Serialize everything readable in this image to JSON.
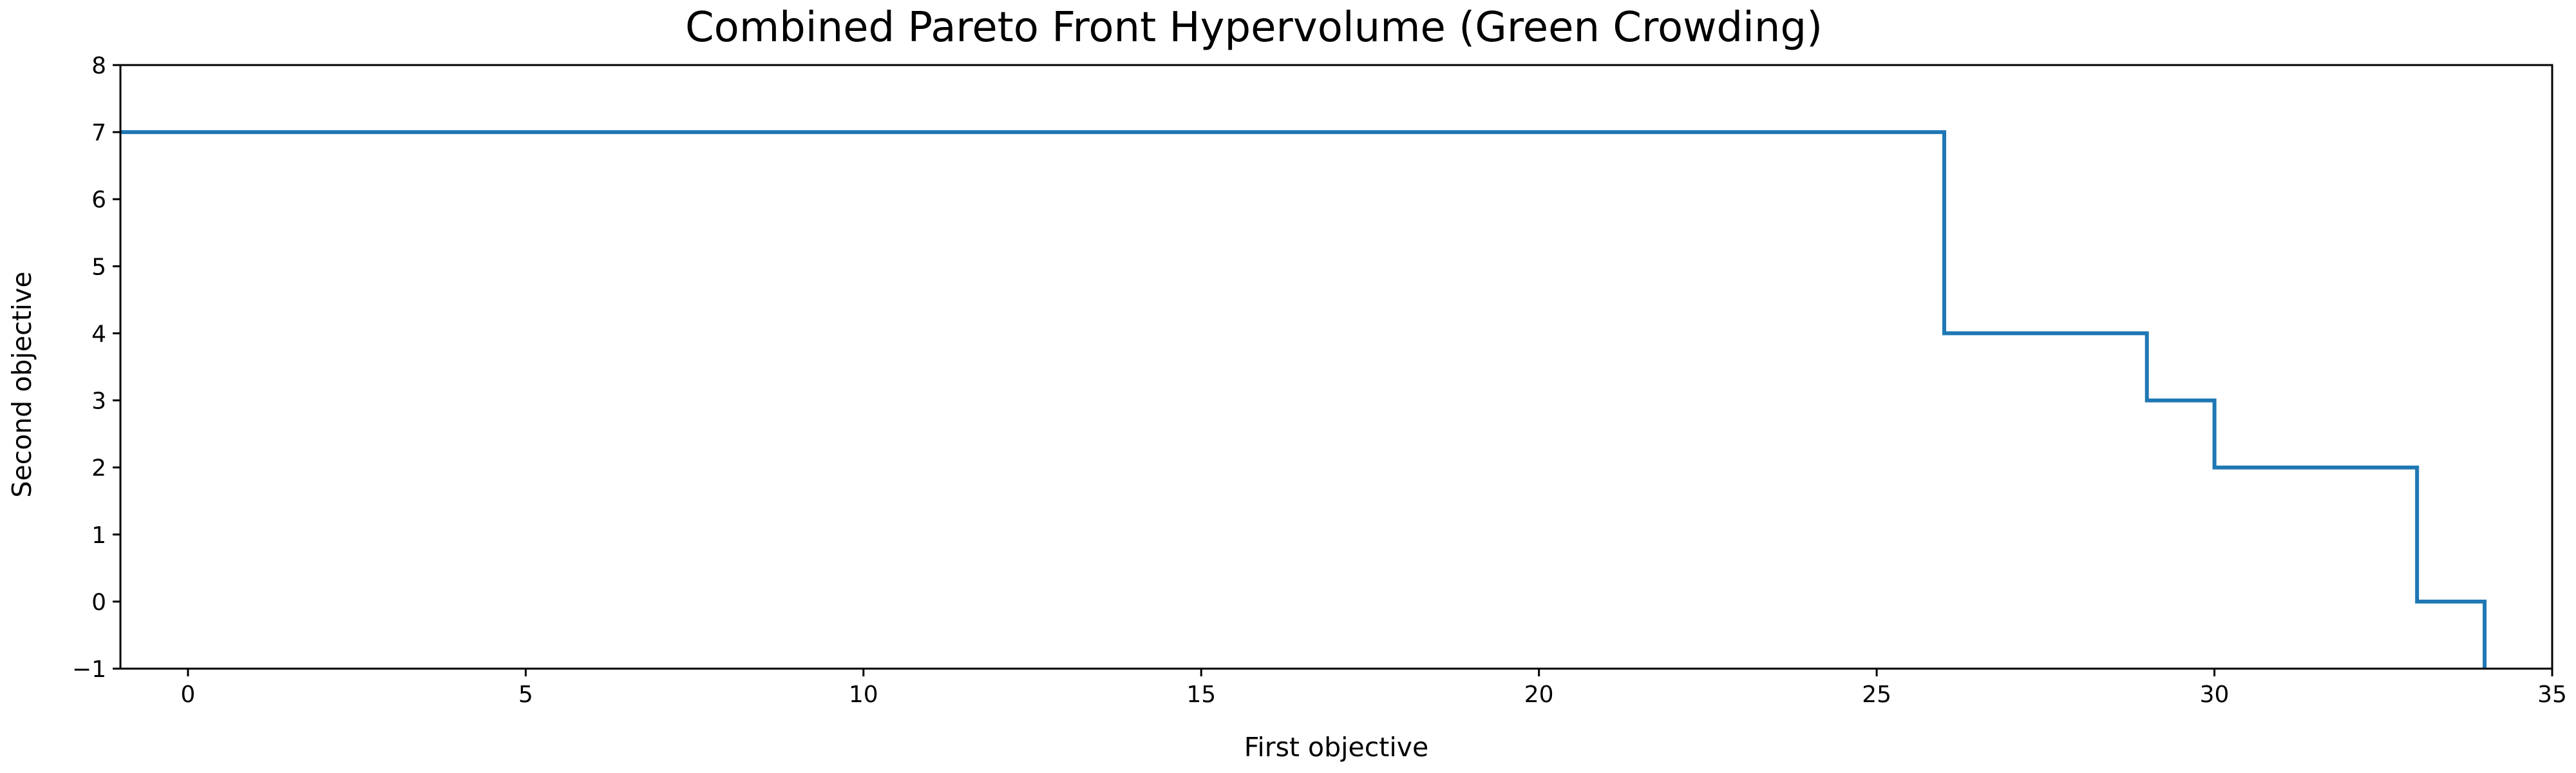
{
  "chart_data": {
    "type": "line",
    "drawstyle": "steps-post",
    "title": "Combined Pareto Front Hypervolume (Green Crowding)",
    "xlabel": "First objective",
    "ylabel": "Second objective",
    "xlim": [
      -1,
      35
    ],
    "ylim": [
      -1,
      8
    ],
    "xticks": [
      0,
      5,
      10,
      15,
      20,
      25,
      30,
      35
    ],
    "yticks": [
      -1,
      0,
      1,
      2,
      3,
      4,
      5,
      6,
      7,
      8
    ],
    "xtick_labels": [
      "0",
      "5",
      "10",
      "15",
      "20",
      "25",
      "30",
      "35"
    ],
    "ytick_labels": [
      "−1",
      "0",
      "1",
      "2",
      "3",
      "4",
      "5",
      "6",
      "7",
      "8"
    ],
    "grid": false,
    "legend": "none",
    "series": [
      {
        "color": "#1f77b4",
        "points": [
          [
            -1,
            7
          ],
          [
            26,
            7
          ],
          [
            26,
            4
          ],
          [
            29,
            4
          ],
          [
            29,
            3
          ],
          [
            30,
            3
          ],
          [
            30,
            2
          ],
          [
            33,
            2
          ],
          [
            33,
            0
          ],
          [
            34,
            0
          ],
          [
            34,
            -1
          ]
        ]
      }
    ]
  }
}
